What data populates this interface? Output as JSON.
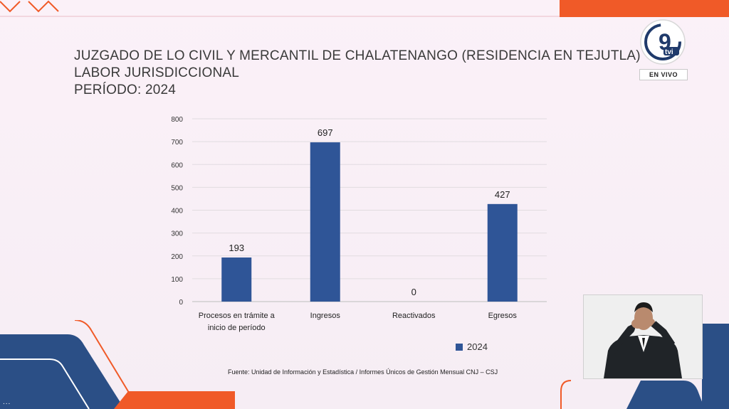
{
  "header": {
    "title_line1": "JUZGADO DE LO CIVIL Y MERCANTIL DE CHALATENANGO (RESIDENCIA EN TEJUTLA)",
    "title_line2": "LABOR JURISDICCIONAL",
    "title_line3": "PERÍODO: 2024"
  },
  "broadcast": {
    "logo_number": "9",
    "logo_text": "tvi",
    "live_label": "EN VIVO",
    "ticker_dots": "..."
  },
  "chart_data": {
    "type": "bar",
    "title": "",
    "categories": [
      [
        "Procesos en trámite a",
        "inicio de período"
      ],
      [
        "Ingresos"
      ],
      [
        "Reactivados"
      ],
      [
        "Egresos"
      ]
    ],
    "series": [
      {
        "name": "2024",
        "values": [
          193,
          697,
          0,
          427
        ],
        "color": "#2f5597"
      }
    ],
    "ylim": [
      0,
      800
    ],
    "yticks": [
      0,
      100,
      200,
      300,
      400,
      500,
      600,
      700,
      800
    ],
    "grid": true,
    "legend_position": "bottom-right"
  },
  "legend": {
    "label": "2024"
  },
  "source_note": "Fuente: Unidad de Información y Estadística / Informes Únicos de Gestión Mensual CNJ – CSJ"
}
